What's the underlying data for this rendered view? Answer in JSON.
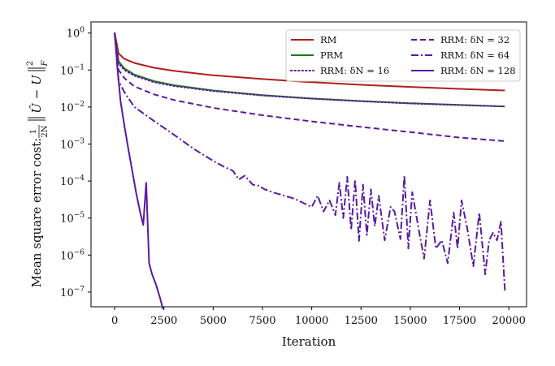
{
  "chart_data": {
    "type": "line",
    "title": "",
    "xlabel": "Iteration",
    "ylabel": "Mean square error cost:  1/2N ‖Û − U‖²_F",
    "ylabel_parts": {
      "prefix": "Mean square error cost:",
      "frac_num": "1",
      "frac_den": "2N",
      "norm_body": "Û − U",
      "exponent": "2",
      "subscript": "F"
    },
    "yscale": "log",
    "xlim": [
      -1200,
      20900
    ],
    "ylim": [
      4e-08,
      2.0
    ],
    "xticks": [
      0,
      2500,
      5000,
      7500,
      10000,
      12500,
      15000,
      17500,
      20000
    ],
    "xtick_labels": [
      "0",
      "2500",
      "5000",
      "7500",
      "10000",
      "12500",
      "15000",
      "17500",
      "20000"
    ],
    "yticks": [
      1,
      0.1,
      0.01,
      0.001,
      0.0001,
      1e-05,
      1e-06,
      1e-07
    ],
    "ytick_labels": [
      {
        "base": "10",
        "exp": "0"
      },
      {
        "base": "10",
        "exp": "−1"
      },
      {
        "base": "10",
        "exp": "−2"
      },
      {
        "base": "10",
        "exp": "−3"
      },
      {
        "base": "10",
        "exp": "−4"
      },
      {
        "base": "10",
        "exp": "−5"
      },
      {
        "base": "10",
        "exp": "−6"
      },
      {
        "base": "10",
        "exp": "−7"
      }
    ],
    "grid": false,
    "legend_placement": "top-right",
    "series": [
      {
        "name": "RM",
        "color": "#b21e1e",
        "dash": "solid",
        "x": [
          0,
          200,
          500,
          1000,
          2000,
          3000,
          5000,
          7500,
          10000,
          12500,
          15000,
          17500,
          19800
        ],
        "y": [
          1.0,
          0.28,
          0.2,
          0.155,
          0.115,
          0.095,
          0.072,
          0.057,
          0.047,
          0.04,
          0.035,
          0.031,
          0.028
        ]
      },
      {
        "name": "PRM",
        "color": "#1e7a1e",
        "dash": "solid",
        "x": [
          0,
          200,
          500,
          1000,
          2000,
          3000,
          5000,
          7500,
          10000,
          12500,
          15000,
          17500,
          19800
        ],
        "y": [
          1.0,
          0.17,
          0.11,
          0.075,
          0.05,
          0.039,
          0.028,
          0.021,
          0.017,
          0.0145,
          0.0127,
          0.0114,
          0.0103
        ]
      },
      {
        "name": "RRM: δN = 16",
        "color": "#5a1aa0",
        "dash": "dotted",
        "x": [
          0,
          200,
          500,
          1000,
          2000,
          3000,
          5000,
          7500,
          10000,
          12500,
          15000,
          17500,
          19800
        ],
        "y": [
          1.0,
          0.15,
          0.1,
          0.07,
          0.047,
          0.037,
          0.027,
          0.0205,
          0.0168,
          0.0143,
          0.0125,
          0.0113,
          0.0104
        ]
      },
      {
        "name": "RRM: δN = 32",
        "color": "#5a1aa0",
        "dash": "dashed",
        "x": [
          0,
          200,
          500,
          1000,
          2000,
          3000,
          5000,
          7500,
          10000,
          12500,
          15000,
          17500,
          19800
        ],
        "y": [
          1.0,
          0.1,
          0.06,
          0.036,
          0.022,
          0.0155,
          0.0095,
          0.006,
          0.0041,
          0.0029,
          0.0021,
          0.0015,
          0.0012
        ]
      },
      {
        "name": "RRM: δN = 64",
        "color": "#5a1aa0",
        "dash": "dashdot",
        "x": [
          0,
          200,
          500,
          1000,
          2000,
          3000,
          4000,
          5000,
          5500,
          6000,
          6300,
          6600,
          7000,
          7300,
          7600,
          8000,
          8300,
          8600,
          9000,
          9300,
          9600,
          10000,
          10300,
          10600,
          10900,
          11200,
          11400,
          11600,
          11800,
          12000,
          12200,
          12400,
          12600,
          12800,
          13000,
          13200,
          13400,
          13700,
          14000,
          14200,
          14500,
          14700,
          14900,
          15100,
          15400,
          15700,
          16000,
          16300,
          16600,
          16900,
          17200,
          17400,
          17600,
          17900,
          18200,
          18500,
          18800,
          19000,
          19200,
          19400,
          19600,
          19800
        ],
        "y": [
          1.0,
          0.05,
          0.025,
          0.01,
          0.0042,
          0.0018,
          0.00075,
          0.00035,
          0.00025,
          0.00019,
          0.00011,
          0.00014,
          8e-05,
          7.5e-05,
          6e-05,
          5e-05,
          4.5e-05,
          4e-05,
          3.5e-05,
          3e-05,
          2.5e-05,
          2e-05,
          4e-05,
          1.5e-05,
          3e-05,
          1.2e-05,
          9e-05,
          1e-05,
          0.00013,
          4.8e-06,
          0.00011,
          2.4e-06,
          8e-05,
          3.5e-06,
          6e-05,
          6e-06,
          4e-05,
          2.5e-06,
          2e-05,
          1.5e-05,
          2.7e-06,
          0.00014,
          1.5e-06,
          5e-05,
          6e-06,
          8e-07,
          3e-05,
          1.5e-06,
          2.5e-06,
          6e-07,
          1.4e-05,
          1.5e-06,
          3e-05,
          5e-06,
          5e-07,
          1.4e-05,
          3e-07,
          2.5e-06,
          4e-06,
          2.5e-06,
          8e-06,
          1.1e-07
        ]
      },
      {
        "name": "RRM: δN = 128",
        "color": "#5a1aa0",
        "dash": "solid",
        "x": [
          0,
          150,
          300,
          500,
          700,
          900,
          1100,
          1300,
          1450,
          1600,
          1750,
          1900,
          2100,
          2300,
          2450
        ],
        "y": [
          1.0,
          0.1,
          0.014,
          0.003,
          0.0007,
          0.00018,
          4.5e-05,
          1.4e-05,
          6.5e-06,
          9e-05,
          6e-07,
          3e-07,
          1.6e-07,
          7e-08,
          3.5e-08
        ]
      }
    ]
  }
}
